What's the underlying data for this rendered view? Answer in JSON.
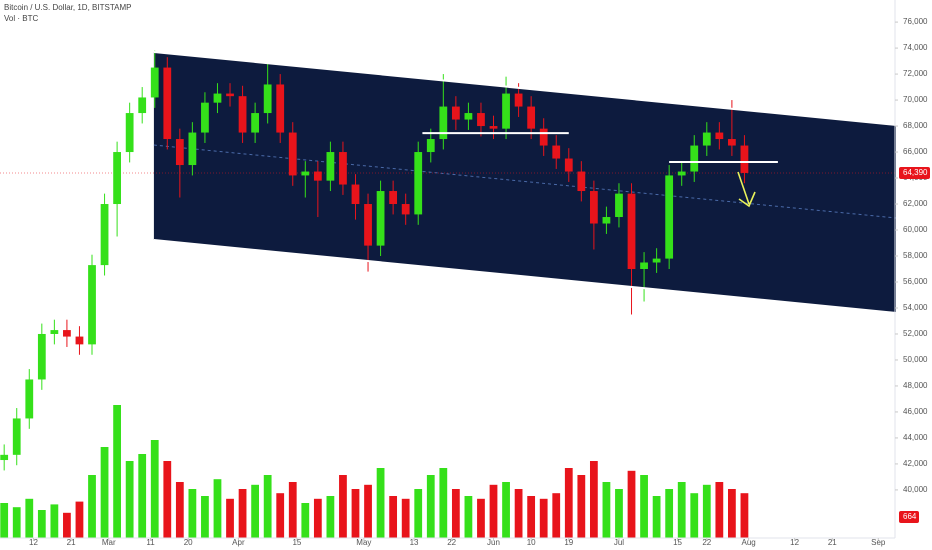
{
  "chart_data": {
    "type": "candlestick",
    "title": "Bitcoin / U.S. Dollar, 1D, BITSTAMP",
    "subtitle": "Vol · BTC",
    "x": [
      4,
      7,
      10,
      13,
      16,
      19,
      22,
      25,
      28,
      31,
      34,
      37,
      40,
      43,
      46,
      49,
      52,
      55,
      58,
      61,
      64,
      67,
      70,
      73,
      76,
      79,
      82,
      85,
      88,
      91,
      94,
      97,
      100,
      103,
      106,
      109,
      112,
      115,
      118,
      121,
      124,
      127,
      130,
      133,
      136,
      139,
      142,
      145,
      148,
      151,
      154,
      157,
      160,
      163,
      166,
      169,
      172,
      175,
      178,
      181
    ],
    "open": [
      42300,
      42700,
      45500,
      48500,
      52000,
      52300,
      51800,
      51200,
      57300,
      62000,
      66000,
      69000,
      70200,
      72500,
      67000,
      65000,
      67500,
      69800,
      70500,
      70300,
      67500,
      69000,
      71200,
      67500,
      64200,
      64500,
      63800,
      66000,
      63500,
      62000,
      58800,
      63000,
      62000,
      61200,
      66000,
      67000,
      69500,
      68500,
      69000,
      68000,
      67800,
      70500,
      69500,
      67800,
      66500,
      65500,
      64500,
      63000,
      60500,
      61000,
      62800,
      57000,
      57500,
      57800,
      64200,
      64500,
      66500,
      67500,
      67000,
      66500
    ],
    "high": [
      43500,
      46300,
      49300,
      52800,
      53100,
      53100,
      52600,
      58100,
      62800,
      66800,
      69800,
      71000,
      73800,
      73300,
      67800,
      68300,
      70600,
      71300,
      71300,
      71100,
      69800,
      72800,
      72000,
      68300,
      65300,
      65300,
      66800,
      66800,
      64300,
      62800,
      63800,
      63800,
      62800,
      66800,
      67800,
      72000,
      70300,
      69800,
      69800,
      68800,
      71800,
      71300,
      70300,
      68600,
      67300,
      66300,
      65300,
      63800,
      61800,
      63600,
      63600,
      58300,
      58600,
      65000,
      65300,
      67300,
      68300,
      68300,
      70000,
      67300
    ],
    "low": [
      41500,
      41900,
      44700,
      47700,
      51200,
      51000,
      50400,
      50400,
      56500,
      59500,
      65200,
      68200,
      69400,
      66200,
      62500,
      64200,
      66700,
      69000,
      69500,
      66700,
      66700,
      68200,
      66700,
      63400,
      62500,
      61000,
      63000,
      62700,
      60800,
      56800,
      58000,
      61200,
      60400,
      60400,
      65200,
      66200,
      67700,
      67700,
      67200,
      67000,
      67000,
      68700,
      67000,
      65700,
      64700,
      63700,
      62200,
      58500,
      59700,
      60200,
      53500,
      54500,
      56700,
      57000,
      63400,
      63700,
      65700,
      66200,
      65700,
      63600
    ],
    "close": [
      42700,
      45500,
      48500,
      52000,
      52300,
      51800,
      51200,
      57300,
      62000,
      66000,
      69000,
      70200,
      72500,
      67000,
      65000,
      67500,
      69800,
      70500,
      70300,
      67500,
      69000,
      71200,
      67500,
      64200,
      64500,
      63800,
      66000,
      63500,
      62000,
      58800,
      63000,
      62000,
      61200,
      66000,
      67000,
      69500,
      68500,
      69000,
      68000,
      67800,
      70500,
      69500,
      67800,
      66500,
      65500,
      64500,
      63000,
      60500,
      61000,
      62800,
      57000,
      57500,
      57800,
      64200,
      64500,
      66500,
      67500,
      67000,
      66500,
      64390
    ],
    "volume": [
      2500,
      2200,
      2800,
      2000,
      2400,
      1800,
      2600,
      4500,
      6500,
      9500,
      5500,
      6000,
      7000,
      5500,
      4000,
      3500,
      3000,
      4200,
      2800,
      3500,
      3800,
      4500,
      3200,
      4000,
      2500,
      2800,
      3000,
      4500,
      3500,
      3800,
      5000,
      3000,
      2800,
      3500,
      4500,
      5000,
      3500,
      3000,
      2800,
      3800,
      4000,
      3500,
      3000,
      2800,
      3200,
      5000,
      4500,
      5500,
      4000,
      3500,
      4800,
      4500,
      3000,
      3500,
      4000,
      3200,
      3800,
      4000,
      3500,
      3200
    ],
    "volume_ylim": [
      0,
      10000
    ],
    "up_color": "#35e01a",
    "down_color": "#e8141b",
    "xlim": [
      3,
      217
    ],
    "xticks": [
      {
        "value": 11,
        "label": "12"
      },
      {
        "value": 20,
        "label": "21"
      },
      {
        "value": 29,
        "label": "Mar"
      },
      {
        "value": 39,
        "label": "11"
      },
      {
        "value": 48,
        "label": "20"
      },
      {
        "value": 60,
        "label": "Apr"
      },
      {
        "value": 74,
        "label": "15"
      },
      {
        "value": 90,
        "label": "May"
      },
      {
        "value": 102,
        "label": "13"
      },
      {
        "value": 111,
        "label": "22"
      },
      {
        "value": 121,
        "label": "Jun"
      },
      {
        "value": 130,
        "label": "10"
      },
      {
        "value": 139,
        "label": "19"
      },
      {
        "value": 151,
        "label": "Jul"
      },
      {
        "value": 165,
        "label": "15"
      },
      {
        "value": 172,
        "label": "22"
      },
      {
        "value": 182,
        "label": "Aug"
      },
      {
        "value": 193,
        "label": "12"
      },
      {
        "value": 202,
        "label": "21"
      },
      {
        "value": 213,
        "label": "Sep"
      }
    ],
    "ylim": [
      36300,
      77700
    ],
    "yticks": [
      {
        "value": 40000,
        "label": "40,000"
      },
      {
        "value": 42000,
        "label": "42,000"
      },
      {
        "value": 44000,
        "label": "44,000"
      },
      {
        "value": 46000,
        "label": "46,000"
      },
      {
        "value": 48000,
        "label": "48,000"
      },
      {
        "value": 50000,
        "label": "50,000"
      },
      {
        "value": 52000,
        "label": "52,000"
      },
      {
        "value": 54000,
        "label": "54,000"
      },
      {
        "value": 56000,
        "label": "56,000"
      },
      {
        "value": 58000,
        "label": "58,000"
      },
      {
        "value": 60000,
        "label": "60,000"
      },
      {
        "value": 62000,
        "label": "62,000"
      },
      {
        "value": 64000,
        "label": "64,000"
      },
      {
        "value": 66000,
        "label": "66,000"
      },
      {
        "value": 68000,
        "label": "68,000"
      },
      {
        "value": 70000,
        "label": "70,000"
      },
      {
        "value": 72000,
        "label": "72,000"
      },
      {
        "value": 74000,
        "label": "74,000"
      },
      {
        "value": 76000,
        "label": "76,000"
      }
    ],
    "channel": {
      "color": "#0d1b3e",
      "upper": {
        "x": [
          39.8,
          217.4
        ],
        "y": [
          73700,
          68077
        ]
      },
      "lower": {
        "x": [
          39.8,
          217.4
        ],
        "y": [
          59230,
          53615
        ]
      },
      "middle": {
        "x": [
          39.8,
          217.4
        ],
        "y": [
          66540,
          60920
        ]
      }
    },
    "levels": [
      {
        "x": [
          104,
          139
        ],
        "y": [
          67460,
          67460
        ]
      },
      {
        "x": [
          163,
          189
        ],
        "y": [
          65230,
          65230
        ]
      }
    ],
    "last_price": {
      "value": 64390,
      "label": "64,390"
    },
    "volume_badge": "664"
  }
}
